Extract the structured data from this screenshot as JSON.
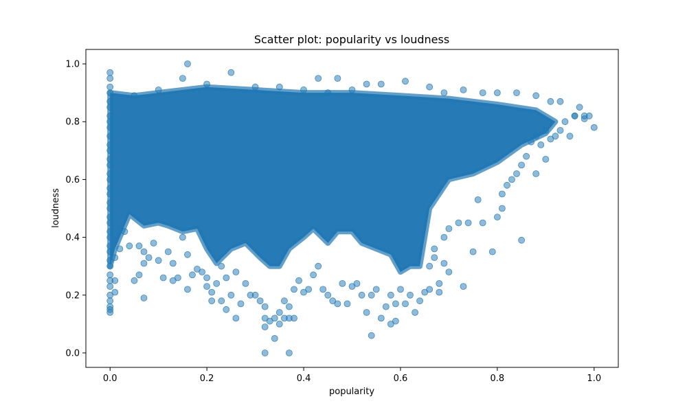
{
  "chart_data": {
    "type": "scatter",
    "title": "Scatter plot: popularity vs loudness",
    "xlabel": "popularity",
    "ylabel": "loudness",
    "xlim": [
      -0.05,
      1.05
    ],
    "ylim": [
      -0.05,
      1.05
    ],
    "xticks": [
      0.0,
      0.2,
      0.4,
      0.6,
      0.8,
      1.0
    ],
    "yticks": [
      0.0,
      0.2,
      0.4,
      0.6,
      0.8,
      1.0
    ],
    "xtick_labels": [
      "0.0",
      "0.2",
      "0.4",
      "0.6",
      "0.8",
      "1.0"
    ],
    "ytick_labels": [
      "0.0",
      "0.2",
      "0.4",
      "0.6",
      "0.8",
      "1.0"
    ],
    "grid": false,
    "marker_color": "#1f77b4",
    "marker_alpha": 0.5,
    "series": [
      {
        "points": [
          [
            0.0,
            0.97
          ],
          [
            0.0,
            0.95
          ],
          [
            0.0,
            0.92
          ],
          [
            0.0,
            0.9
          ],
          [
            0.0,
            0.87
          ],
          [
            0.0,
            0.85
          ],
          [
            0.0,
            0.82
          ],
          [
            0.0,
            0.8
          ],
          [
            0.0,
            0.78
          ],
          [
            0.0,
            0.75
          ],
          [
            0.0,
            0.72
          ],
          [
            0.0,
            0.7
          ],
          [
            0.0,
            0.67
          ],
          [
            0.0,
            0.65
          ],
          [
            0.0,
            0.62
          ],
          [
            0.0,
            0.6
          ],
          [
            0.0,
            0.57
          ],
          [
            0.0,
            0.55
          ],
          [
            0.0,
            0.52
          ],
          [
            0.0,
            0.5
          ],
          [
            0.0,
            0.47
          ],
          [
            0.0,
            0.45
          ],
          [
            0.0,
            0.42
          ],
          [
            0.0,
            0.4
          ],
          [
            0.0,
            0.37
          ],
          [
            0.0,
            0.35
          ],
          [
            0.0,
            0.32
          ],
          [
            0.0,
            0.3
          ],
          [
            0.0,
            0.27
          ],
          [
            0.0,
            0.25
          ],
          [
            0.0,
            0.23
          ],
          [
            0.0,
            0.2
          ],
          [
            0.0,
            0.18
          ],
          [
            0.0,
            0.16
          ],
          [
            0.0,
            0.15
          ],
          [
            0.0,
            0.14
          ],
          [
            0.01,
            0.21
          ],
          [
            0.01,
            0.25
          ],
          [
            0.01,
            0.33
          ],
          [
            0.01,
            0.39
          ],
          [
            0.02,
            0.36
          ],
          [
            0.03,
            0.42
          ],
          [
            0.04,
            0.37
          ],
          [
            0.05,
            0.25
          ],
          [
            0.06,
            0.27
          ],
          [
            0.06,
            0.37
          ],
          [
            0.07,
            0.19
          ],
          [
            0.07,
            0.31
          ],
          [
            0.07,
            0.35
          ],
          [
            0.08,
            0.33
          ],
          [
            0.09,
            0.38
          ],
          [
            0.1,
            0.32
          ],
          [
            0.11,
            0.26
          ],
          [
            0.12,
            0.35
          ],
          [
            0.13,
            0.25
          ],
          [
            0.13,
            0.31
          ],
          [
            0.14,
            0.26
          ],
          [
            0.15,
            0.4
          ],
          [
            0.16,
            0.22
          ],
          [
            0.16,
            0.34
          ],
          [
            0.17,
            0.27
          ],
          [
            0.18,
            0.29
          ],
          [
            0.19,
            0.28
          ],
          [
            0.2,
            0.23
          ],
          [
            0.2,
            0.26
          ],
          [
            0.21,
            0.18
          ],
          [
            0.21,
            0.21
          ],
          [
            0.22,
            0.24
          ],
          [
            0.23,
            0.18
          ],
          [
            0.23,
            0.3
          ],
          [
            0.24,
            0.15
          ],
          [
            0.24,
            0.26
          ],
          [
            0.25,
            0.2
          ],
          [
            0.26,
            0.12
          ],
          [
            0.26,
            0.28
          ],
          [
            0.27,
            0.17
          ],
          [
            0.28,
            0.24
          ],
          [
            0.29,
            0.2
          ],
          [
            0.3,
            0.2
          ],
          [
            0.31,
            0.18
          ],
          [
            0.32,
            0.0
          ],
          [
            0.32,
            0.09
          ],
          [
            0.32,
            0.12
          ],
          [
            0.32,
            0.16
          ],
          [
            0.33,
            0.11
          ],
          [
            0.34,
            0.05
          ],
          [
            0.34,
            0.12
          ],
          [
            0.35,
            0.1
          ],
          [
            0.35,
            0.14
          ],
          [
            0.36,
            0.12
          ],
          [
            0.36,
            0.18
          ],
          [
            0.37,
            0.0
          ],
          [
            0.37,
            0.12
          ],
          [
            0.37,
            0.16
          ],
          [
            0.38,
            0.12
          ],
          [
            0.38,
            0.22
          ],
          [
            0.39,
            0.25
          ],
          [
            0.4,
            0.21
          ],
          [
            0.41,
            0.22
          ],
          [
            0.42,
            0.27
          ],
          [
            0.43,
            0.3
          ],
          [
            0.44,
            0.22
          ],
          [
            0.45,
            0.2
          ],
          [
            0.46,
            0.18
          ],
          [
            0.47,
            0.17
          ],
          [
            0.48,
            0.24
          ],
          [
            0.49,
            0.17
          ],
          [
            0.5,
            0.23
          ],
          [
            0.51,
            0.24
          ],
          [
            0.52,
            0.2
          ],
          [
            0.53,
            0.14
          ],
          [
            0.54,
            0.06
          ],
          [
            0.54,
            0.2
          ],
          [
            0.55,
            0.22
          ],
          [
            0.56,
            0.12
          ],
          [
            0.57,
            0.16
          ],
          [
            0.58,
            0.1
          ],
          [
            0.58,
            0.2
          ],
          [
            0.59,
            0.11
          ],
          [
            0.59,
            0.17
          ],
          [
            0.6,
            0.22
          ],
          [
            0.61,
            0.17
          ],
          [
            0.62,
            0.2
          ],
          [
            0.63,
            0.14
          ],
          [
            0.64,
            0.18
          ],
          [
            0.65,
            0.21
          ],
          [
            0.66,
            0.22
          ],
          [
            0.66,
            0.3
          ],
          [
            0.67,
            0.33
          ],
          [
            0.67,
            0.36
          ],
          [
            0.68,
            0.21
          ],
          [
            0.68,
            0.24
          ],
          [
            0.69,
            0.31
          ],
          [
            0.69,
            0.4
          ],
          [
            0.7,
            0.28
          ],
          [
            0.7,
            0.43
          ],
          [
            0.72,
            0.45
          ],
          [
            0.73,
            0.23
          ],
          [
            0.74,
            0.45
          ],
          [
            0.75,
            0.35
          ],
          [
            0.76,
            0.53
          ],
          [
            0.77,
            0.45
          ],
          [
            0.79,
            0.35
          ],
          [
            0.8,
            0.47
          ],
          [
            0.81,
            0.5
          ],
          [
            0.81,
            0.55
          ],
          [
            0.82,
            0.58
          ],
          [
            0.83,
            0.6
          ],
          [
            0.84,
            0.62
          ],
          [
            0.85,
            0.39
          ],
          [
            0.85,
            0.65
          ],
          [
            0.86,
            0.68
          ],
          [
            0.87,
            0.73
          ],
          [
            0.88,
            0.62
          ],
          [
            0.88,
            0.75
          ],
          [
            0.89,
            0.72
          ],
          [
            0.9,
            0.67
          ],
          [
            0.9,
            0.77
          ],
          [
            0.91,
            0.74
          ],
          [
            0.92,
            0.75
          ],
          [
            0.93,
            0.77
          ],
          [
            0.94,
            0.8
          ],
          [
            0.95,
            0.75
          ],
          [
            0.96,
            0.82
          ],
          [
            0.97,
            0.85
          ],
          [
            0.98,
            0.81
          ],
          [
            0.99,
            0.82
          ],
          [
            1.0,
            0.78
          ],
          [
            0.16,
            1.0
          ],
          [
            0.25,
            0.97
          ],
          [
            0.15,
            0.95
          ],
          [
            0.2,
            0.93
          ],
          [
            0.43,
            0.95
          ],
          [
            0.47,
            0.95
          ],
          [
            0.53,
            0.93
          ],
          [
            0.56,
            0.93
          ],
          [
            0.61,
            0.94
          ],
          [
            0.66,
            0.92
          ],
          [
            0.69,
            0.9
          ],
          [
            0.73,
            0.91
          ],
          [
            0.77,
            0.9
          ],
          [
            0.8,
            0.9
          ],
          [
            0.84,
            0.9
          ],
          [
            0.88,
            0.89
          ],
          [
            0.91,
            0.87
          ],
          [
            0.93,
            0.87
          ],
          [
            0.96,
            0.82
          ],
          [
            0.98,
            0.82
          ],
          [
            0.05,
            0.89
          ],
          [
            0.1,
            0.91
          ],
          [
            0.3,
            0.92
          ],
          [
            0.35,
            0.92
          ],
          [
            0.4,
            0.91
          ],
          [
            0.45,
            0.9
          ],
          [
            0.5,
            0.91
          ]
        ]
      }
    ]
  }
}
